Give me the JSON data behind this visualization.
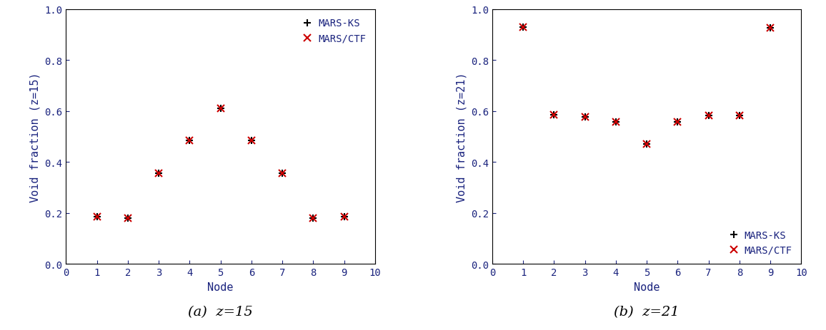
{
  "plot1": {
    "ylabel": "Void fraction (z=15)",
    "xlabel": "Node",
    "caption": "(a)  z=15",
    "xlim": [
      0,
      10
    ],
    "ylim": [
      0.0,
      1.0
    ],
    "xticks": [
      0,
      1,
      2,
      3,
      4,
      5,
      6,
      7,
      8,
      9,
      10
    ],
    "yticks": [
      0.0,
      0.2,
      0.4,
      0.6,
      0.8,
      1.0
    ],
    "mars_ks_x": [
      1,
      2,
      3,
      4,
      5,
      6,
      7,
      8,
      9
    ],
    "mars_ks_y": [
      0.185,
      0.18,
      0.355,
      0.485,
      0.61,
      0.485,
      0.355,
      0.18,
      0.185
    ],
    "mars_ctf_x": [
      1,
      2,
      3,
      4,
      5,
      6,
      7,
      8,
      9
    ],
    "mars_ctf_y": [
      0.185,
      0.18,
      0.355,
      0.485,
      0.61,
      0.485,
      0.355,
      0.18,
      0.185
    ],
    "legend_loc": "upper right"
  },
  "plot2": {
    "ylabel": "Void fraction (z=21)",
    "xlabel": "Node",
    "caption": "(b)  z=21",
    "xlim": [
      0,
      10
    ],
    "ylim": [
      0.0,
      1.0
    ],
    "xticks": [
      0,
      1,
      2,
      3,
      4,
      5,
      6,
      7,
      8,
      9,
      10
    ],
    "yticks": [
      0.0,
      0.2,
      0.4,
      0.6,
      0.8,
      1.0
    ],
    "mars_ks_x": [
      1,
      2,
      3,
      4,
      5,
      6,
      7,
      8,
      9
    ],
    "mars_ks_y": [
      0.93,
      0.585,
      0.578,
      0.558,
      0.47,
      0.558,
      0.583,
      0.583,
      0.928
    ],
    "mars_ctf_x": [
      1,
      2,
      3,
      4,
      5,
      6,
      7,
      8,
      9
    ],
    "mars_ctf_y": [
      0.93,
      0.585,
      0.578,
      0.558,
      0.47,
      0.558,
      0.583,
      0.583,
      0.928
    ],
    "legend_loc": "lower right"
  },
  "mars_ks_color": "#000000",
  "mars_ctf_color": "#cc0000",
  "label_color": "#1a237e",
  "tick_label_color": "#1a237e",
  "caption_color": "#000000",
  "marker_size": 7,
  "marker_linewidth": 1.5,
  "axis_label_fontsize": 11,
  "tick_fontsize": 10,
  "legend_fontsize": 10,
  "caption_fontsize": 14,
  "fig_width": 11.56,
  "fig_height": 4.64
}
